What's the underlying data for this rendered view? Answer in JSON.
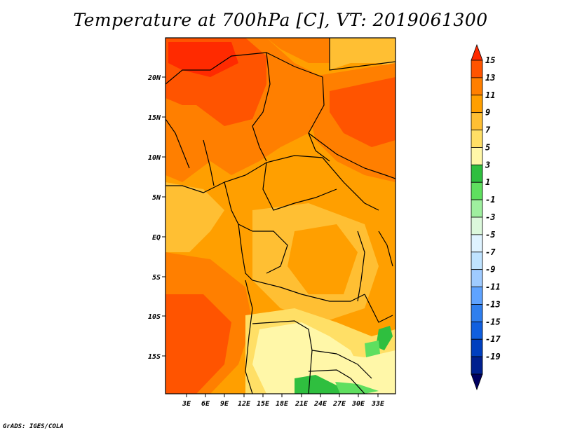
{
  "title": "Temperature at 700hPa [C], VT: 2019061300",
  "credit": "GrADS: IGES/COLA",
  "map": {
    "lon_range": [
      0,
      36
    ],
    "lat_range": [
      -20,
      25
    ],
    "x_ticks": [
      "3E",
      "6E",
      "9E",
      "12E",
      "15E",
      "18E",
      "21E",
      "24E",
      "27E",
      "30E",
      "33E"
    ],
    "y_ticks": [
      "20N",
      "15N",
      "10N",
      "5N",
      "EQ",
      "5S",
      "10S",
      "15S"
    ]
  },
  "colorbar": {
    "labels": [
      "15",
      "13",
      "11",
      "9",
      "7",
      "5",
      "3",
      "1",
      "-1",
      "-3",
      "-5",
      "-7",
      "-9",
      "-11",
      "-13",
      "-15",
      "-17",
      "-19"
    ],
    "colors": [
      "#ff2a00",
      "#ff5400",
      "#ff7f00",
      "#ff9f00",
      "#ffbf33",
      "#ffdf66",
      "#fff7a8",
      "#2fbf3f",
      "#5fdf5f",
      "#9fef9f",
      "#dcf8dc",
      "#dff3ff",
      "#bfe3ff",
      "#9fcbff",
      "#5fa3ff",
      "#2f7fef",
      "#105fdf",
      "#003fbf",
      "#00208f",
      "#000060"
    ]
  },
  "chart_data": {
    "type": "heatmap",
    "title": "Temperature at 700hPa [C], VT: 2019061300",
    "variable": "Temperature at 700hPa",
    "units": "C",
    "valid_time": "2019061300",
    "x_ticks": [
      "3E",
      "6E",
      "9E",
      "12E",
      "15E",
      "18E",
      "21E",
      "24E",
      "27E",
      "30E",
      "33E"
    ],
    "y_ticks": [
      "20N",
      "15N",
      "10N",
      "5N",
      "EQ",
      "5S",
      "10S",
      "15S"
    ],
    "levels": [
      15,
      13,
      11,
      9,
      7,
      5,
      3,
      1,
      -1,
      -3,
      -5,
      -7,
      -9,
      -11,
      -13,
      -15,
      -17,
      -19
    ]
  }
}
